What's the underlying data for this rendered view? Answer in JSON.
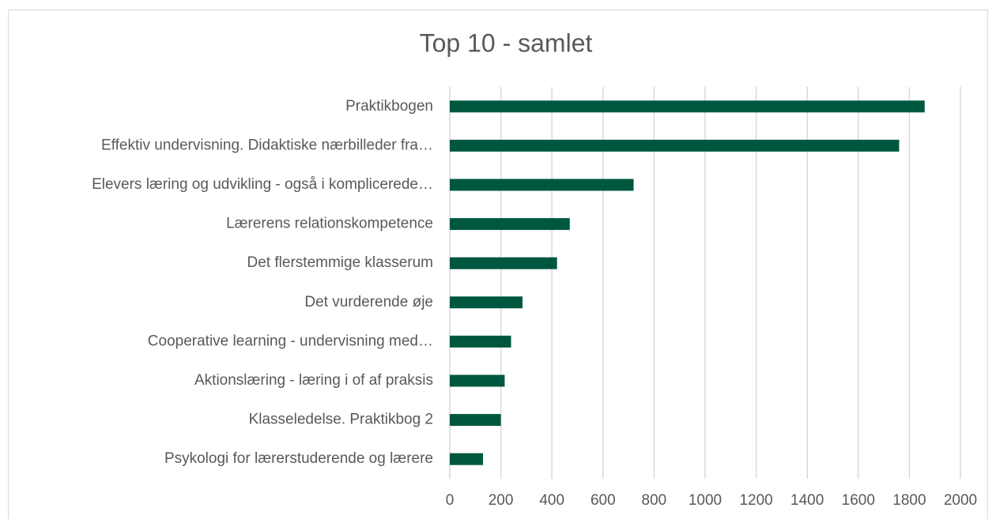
{
  "chart_data": {
    "type": "barh",
    "title": "Top 10 - samlet",
    "categories": [
      "Praktikbogen",
      "Effektiv undervisning. Didaktiske nærbilleder fra…",
      "Elevers læring og udvikling - også i komplicerede…",
      "Lærerens relationskompetence",
      "Det flerstemmige klasserum",
      "Det vurderende øje",
      "Cooperative learning - undervisning med…",
      "Aktionslæring - læring i of af praksis",
      "Klasseledelse. Praktikbog 2",
      "Psykologi for lærerstuderende og lærere"
    ],
    "values": [
      1860,
      1760,
      720,
      470,
      420,
      285,
      240,
      215,
      200,
      130
    ],
    "color": "#00573f",
    "xlim": [
      0,
      2000
    ],
    "xticks": [
      0,
      200,
      400,
      600,
      800,
      1000,
      1200,
      1400,
      1600,
      1800,
      2000
    ],
    "grid": true
  }
}
